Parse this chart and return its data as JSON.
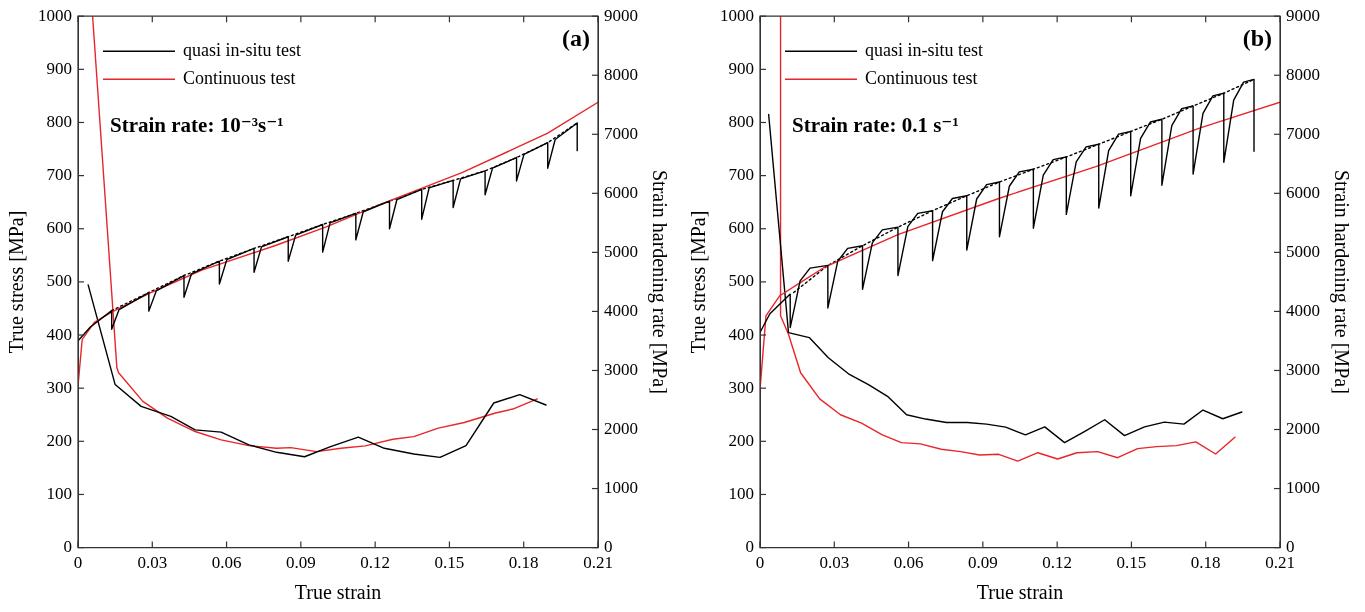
{
  "chart_data": [
    {
      "type": "line",
      "xlabel": "True strain",
      "ylabel": "True stress [MPa]",
      "y2label": "Strain hardening rate [MPa]",
      "xlim": [
        0,
        0.21
      ],
      "xticks": [
        0,
        0.03,
        0.06,
        0.09,
        0.12,
        0.15,
        0.18,
        0.21
      ],
      "ylim": [
        0,
        1000
      ],
      "yticks": [
        0,
        100,
        200,
        300,
        400,
        500,
        600,
        700,
        800,
        900,
        1000
      ],
      "y2lim": [
        0,
        9000
      ],
      "y2ticks": [
        0,
        1000,
        2000,
        3000,
        4000,
        5000,
        6000,
        7000,
        8000,
        9000
      ],
      "grid": false,
      "legend": "top left",
      "annotations": [
        "(a)",
        "Strain rate: 10⁻³s⁻¹"
      ],
      "series": [
        {
          "name": "quasi in-situ test",
          "color": "#000000",
          "x": [
            0,
            0.005,
            0.0136,
            0.0136,
            0.0166,
            0.0286,
            0.0286,
            0.0316,
            0.0428,
            0.0428,
            0.0458,
            0.0571,
            0.0571,
            0.0601,
            0.0711,
            0.0711,
            0.0741,
            0.0849,
            0.0849,
            0.0879,
            0.0988,
            0.0988,
            0.1018,
            0.1122,
            0.1122,
            0.1152,
            0.1258,
            0.1258,
            0.1288,
            0.1388,
            0.1388,
            0.1418,
            0.1515,
            0.1515,
            0.1545,
            0.1644,
            0.1644,
            0.1674,
            0.1771,
            0.1771,
            0.1801,
            0.1897,
            0.1897,
            0.1927,
            0.2016,
            0.2016
          ],
          "values": [
            389,
            415,
            446,
            411,
            448,
            480,
            445,
            483,
            512,
            471,
            515,
            539,
            496,
            542,
            563,
            518,
            566,
            585,
            539,
            588,
            608,
            556,
            611,
            629,
            579,
            632,
            652,
            600,
            655,
            674,
            618,
            677,
            691,
            640,
            694,
            709,
            664,
            714,
            734,
            690,
            740,
            762,
            714,
            768,
            799,
            747
          ]
        },
        {
          "name": "Continuous test",
          "color": "#e8262a",
          "x": [
            0,
            0.0017,
            0.0066,
            0.0136,
            0.03,
            0.05,
            0.08,
            0.1,
            0.1216,
            0.1553,
            0.1777,
            0.1897,
            0.21
          ],
          "values": [
            304,
            392,
            424,
            443,
            481,
            522,
            569,
            603,
            645,
            706,
            754,
            780,
            838
          ]
        },
        {
          "color": "#000000",
          "line_style": "dotted",
          "x": [
            0.0136,
            0.0286,
            0.0428,
            0.0571,
            0.0711,
            0.0849,
            0.0988,
            0.1122,
            0.1258,
            0.1388,
            0.1515,
            0.1644,
            0.1771,
            0.1897,
            0.2016
          ],
          "values": [
            446,
            480,
            512,
            539,
            563,
            585,
            608,
            629,
            652,
            674,
            691,
            709,
            734,
            762,
            799
          ]
        },
        {
          "color": "#000000",
          "axis": "y2",
          "x": [
            0.0041,
            0.015,
            0.0255,
            0.0375,
            0.0473,
            0.0578,
            0.069,
            0.0802,
            0.0915,
            0.102,
            0.1132,
            0.1237,
            0.1356,
            0.1462,
            0.1567,
            0.1679,
            0.1784,
            0.189
          ],
          "values": [
            4450,
            2761,
            2392,
            2221,
            1994,
            1955,
            1739,
            1614,
            1539,
            1710,
            1870,
            1682,
            1585,
            1529,
            1727,
            2449,
            2591,
            2415
          ]
        },
        {
          "color": "#e8262a",
          "axis": "y2",
          "x": [
            0.0059,
            0.0157,
            0.0164,
            0.0262,
            0.0361,
            0.0473,
            0.0578,
            0.069,
            0.0802,
            0.0859,
            0.0964,
            0.1062,
            0.116,
            0.1272,
            0.1356,
            0.1455,
            0.156,
            0.1686,
            0.1756,
            0.1855
          ],
          "values": [
            9000,
            3046,
            2961,
            2477,
            2193,
            1966,
            1824,
            1727,
            1682,
            1693,
            1625,
            1682,
            1722,
            1835,
            1880,
            2023,
            2119,
            2279,
            2347,
            2518
          ]
        }
      ]
    },
    {
      "type": "line",
      "xlabel": "True strain",
      "ylabel": "True stress [MPa]",
      "y2label": "Strain hardening rate [MPa]",
      "xlim": [
        0,
        0.21
      ],
      "xticks": [
        0,
        0.03,
        0.06,
        0.09,
        0.12,
        0.15,
        0.18,
        0.21
      ],
      "ylim": [
        0,
        1000
      ],
      "yticks": [
        0,
        100,
        200,
        300,
        400,
        500,
        600,
        700,
        800,
        900,
        1000
      ],
      "y2lim": [
        0,
        9000
      ],
      "y2ticks": [
        0,
        1000,
        2000,
        3000,
        4000,
        5000,
        6000,
        7000,
        8000,
        9000
      ],
      "grid": false,
      "legend": "top left",
      "annotations": [
        "(b)",
        "Strain rate: 0.1 s⁻¹"
      ],
      "series": [
        {
          "name": "quasi in-situ test",
          "color": "#000000",
          "x": [
            0,
            0.004,
            0.0122,
            0.0122,
            0.0162,
            0.0202,
            0.0274,
            0.0274,
            0.0314,
            0.0354,
            0.0414,
            0.0414,
            0.0454,
            0.0494,
            0.0557,
            0.0557,
            0.0597,
            0.0637,
            0.0697,
            0.0697,
            0.0737,
            0.0777,
            0.0835,
            0.0835,
            0.0875,
            0.0915,
            0.0967,
            0.0967,
            0.1007,
            0.1047,
            0.1104,
            0.1104,
            0.1144,
            0.1184,
            0.1237,
            0.1237,
            0.1277,
            0.1317,
            0.1368,
            0.1368,
            0.1408,
            0.1448,
            0.1497,
            0.1497,
            0.1537,
            0.1577,
            0.1623,
            0.1623,
            0.1663,
            0.1703,
            0.1749,
            0.1749,
            0.1789,
            0.1829,
            0.1873,
            0.1873,
            0.1913,
            0.1953,
            0.1995,
            0.1995
          ],
          "values": [
            405,
            440,
            477,
            414,
            502,
            526,
            531,
            451,
            539,
            563,
            568,
            486,
            574,
            598,
            603,
            512,
            604,
            629,
            634,
            540,
            632,
            657,
            662,
            560,
            656,
            683,
            688,
            585,
            680,
            707,
            712,
            601,
            701,
            730,
            735,
            627,
            726,
            754,
            759,
            639,
            747,
            778,
            783,
            662,
            770,
            801,
            806,
            682,
            794,
            826,
            831,
            703,
            817,
            850,
            855,
            725,
            842,
            876,
            881,
            746
          ]
        },
        {
          "name": "Continuous test",
          "color": "#e8262a",
          "x": [
            0,
            0.0024,
            0.008,
            0.0164,
            0.0262,
            0.0557,
            0.0964,
            0.1356,
            0.1778,
            0.21
          ],
          "values": [
            297,
            436,
            474,
            499,
            528,
            589,
            657,
            717,
            790,
            838
          ]
        },
        {
          "color": "#000000",
          "line_style": "dotted",
          "x": [
            0.0136,
            0.0274,
            0.0414,
            0.0557,
            0.0697,
            0.0835,
            0.0967,
            0.1104,
            0.1237,
            0.1368,
            0.1497,
            0.1623,
            0.1749,
            0.1873,
            0.1995
          ],
          "values": [
            480,
            531,
            568,
            603,
            634,
            662,
            688,
            712,
            735,
            759,
            783,
            806,
            831,
            855,
            881
          ]
        },
        {
          "color": "#000000",
          "axis": "y2",
          "x": [
            0.0035,
            0.0115,
            0.0199,
            0.0276,
            0.0361,
            0.0438,
            0.0515,
            0.0592,
            0.0669,
            0.0753,
            0.0837,
            0.0915,
            0.0992,
            0.1072,
            0.115,
            0.123,
            0.131,
            0.1392,
            0.1472,
            0.1553,
            0.1633,
            0.1712,
            0.1789,
            0.1869,
            0.1946
          ],
          "values": [
            7334,
            3642,
            3557,
            3216,
            2932,
            2761,
            2562,
            2250,
            2177,
            2119,
            2119,
            2091,
            2040,
            1909,
            2045,
            1778,
            1966,
            2165,
            1897,
            2045,
            2125,
            2091,
            2330,
            2182,
            2296
          ]
        },
        {
          "color": "#e8262a",
          "axis": "y2",
          "x": [
            0.0083,
            0.0083,
            0.0115,
            0.0164,
            0.0241,
            0.0325,
            0.041,
            0.0494,
            0.0571,
            0.0648,
            0.0732,
            0.081,
            0.0887,
            0.0964,
            0.1041,
            0.1122,
            0.1202,
            0.128,
            0.1364,
            0.1444,
            0.1525,
            0.1602,
            0.1682,
            0.176,
            0.184,
            0.1918
          ],
          "values": [
            9000,
            3926,
            3614,
            2961,
            2518,
            2250,
            2108,
            1909,
            1778,
            1756,
            1665,
            1625,
            1568,
            1580,
            1466,
            1607,
            1500,
            1607,
            1625,
            1522,
            1676,
            1710,
            1727,
            1790,
            1585,
            1870
          ]
        }
      ]
    }
  ]
}
